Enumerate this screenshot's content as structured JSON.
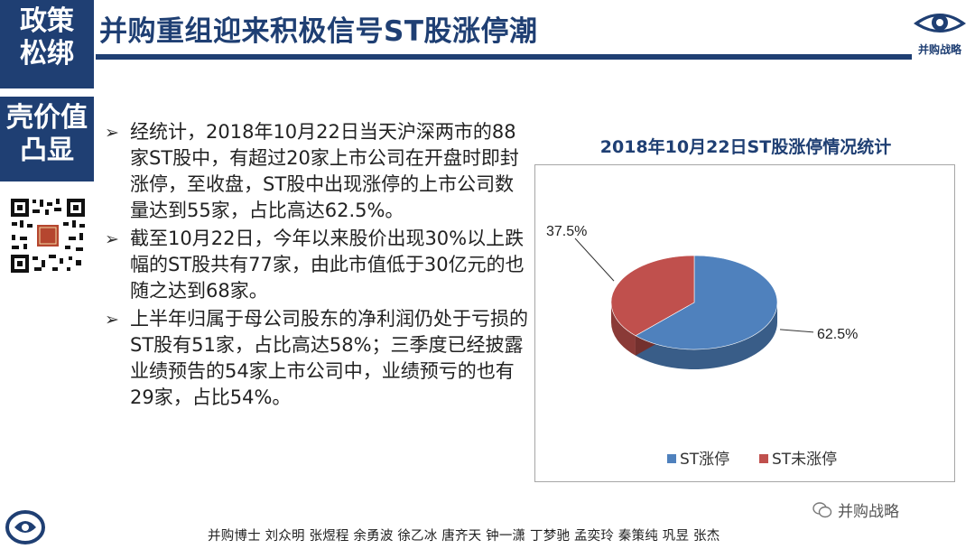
{
  "side_tags": {
    "tag1": "政策\n松绑",
    "tag1_lines": [
      "政策",
      "松绑"
    ],
    "tag2_lines": [
      "壳价值",
      "凸显"
    ]
  },
  "header": {
    "title": "并购重组迎来积极信号ST股涨停潮",
    "logo_text": "并购战略"
  },
  "bullets": [
    "经统计，2018年10月22日当天沪深两市的88家ST股中，有超过20家上市公司在开盘时即封涨停，至收盘，ST股中出现涨停的上市公司数量达到55家，占比高达62.5%。",
    "截至10月22日，今年以来股价出现30%以上跌幅的ST股共有77家，由此市值低于30亿元的也随之达到68家。",
    "上半年归属于母公司股东的净利润仍处于亏损的ST股有51家，占比高达58%；三季度已经披露业绩预告的54家上市公司中，业绩预亏的也有29家，占比54%。"
  ],
  "chart_data": {
    "type": "pie",
    "title": "2018年10月22日ST股涨停情况统计",
    "categories": [
      "ST涨停",
      "ST未涨停"
    ],
    "values": [
      62.5,
      37.5
    ],
    "labels": [
      "62.5%",
      "37.5%"
    ],
    "colors": [
      "#4f81bd",
      "#c0504d"
    ],
    "legend_position": "bottom",
    "three_d": true
  },
  "footer": {
    "names": "并购博士 刘众明 张煜程 余勇波 徐乙冰 唐齐天 钟一潇 丁梦驰 孟奕玲 秦策纯 巩昱 张杰",
    "watermark": "并购战略"
  }
}
